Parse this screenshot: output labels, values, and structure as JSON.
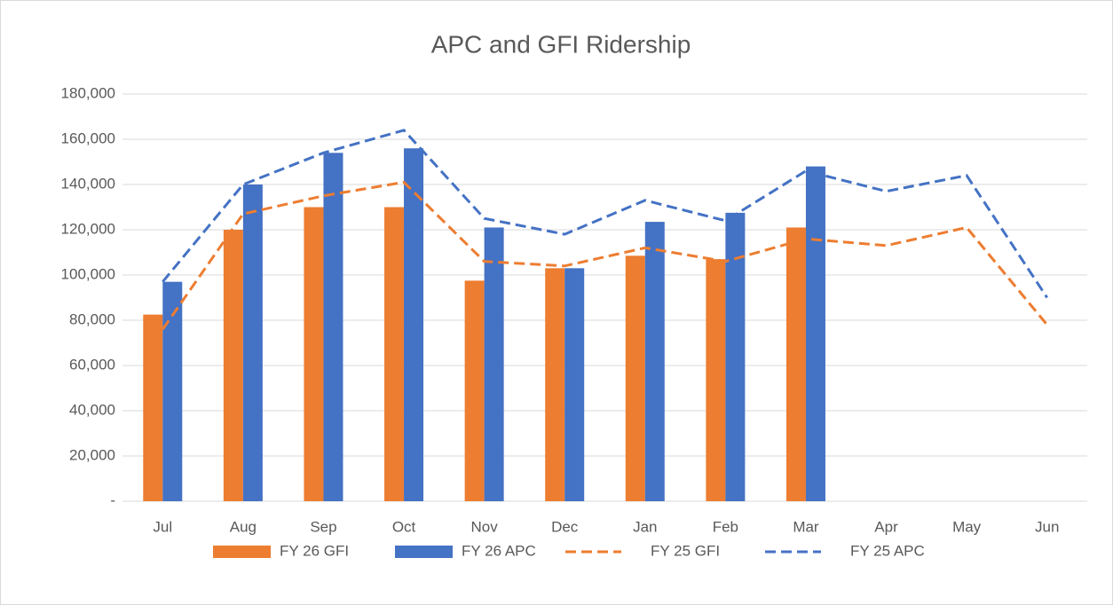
{
  "chart_data": {
    "type": "bar",
    "title": "APC and GFI Ridership",
    "categories": [
      "Jul",
      "Aug",
      "Sep",
      "Oct",
      "Nov",
      "Dec",
      "Jan",
      "Feb",
      "Mar",
      "Apr",
      "May",
      "Jun"
    ],
    "series": [
      {
        "name": "FY 26 GFI",
        "type": "bar",
        "color": "#ed7d31",
        "values": [
          82500,
          120000,
          130000,
          130000,
          97500,
          103000,
          108500,
          107000,
          121000,
          null,
          null,
          null
        ]
      },
      {
        "name": "FY 26 APC",
        "type": "bar",
        "color": "#4472c4",
        "values": [
          97000,
          140000,
          154000,
          156000,
          121000,
          103000,
          123500,
          127500,
          148000,
          null,
          null,
          null
        ]
      },
      {
        "name": "FY 25 GFI",
        "type": "line",
        "dashed": true,
        "color": "#ed7d31",
        "values": [
          76000,
          127000,
          135000,
          141000,
          106000,
          104000,
          112000,
          106000,
          116000,
          113000,
          121000,
          78000
        ]
      },
      {
        "name": "FY 25 APC",
        "type": "line",
        "dashed": true,
        "color": "#4472c4",
        "values": [
          97000,
          140000,
          154000,
          164000,
          125000,
          118000,
          133000,
          124000,
          146000,
          137000,
          144000,
          90000
        ]
      }
    ],
    "ylim": [
      0,
      180000
    ],
    "yticks": [
      {
        "value": 0,
        "label": "-"
      },
      {
        "value": 20000,
        "label": "20,000"
      },
      {
        "value": 40000,
        "label": "40,000"
      },
      {
        "value": 60000,
        "label": "60,000"
      },
      {
        "value": 80000,
        "label": "80,000"
      },
      {
        "value": 100000,
        "label": "100,000"
      },
      {
        "value": 120000,
        "label": "120,000"
      },
      {
        "value": 140000,
        "label": "140,000"
      },
      {
        "value": 160000,
        "label": "160,000"
      },
      {
        "value": 180000,
        "label": "180,000"
      }
    ],
    "grid": true,
    "legend": "bottom"
  }
}
